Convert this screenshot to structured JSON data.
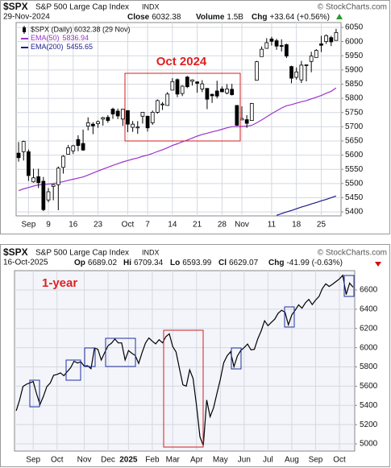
{
  "chart_data": [
    {
      "type": "candlestick",
      "symbol": "$SPX",
      "title": "S&P 500 Large Cap Index",
      "exchange": "INDX",
      "credit": "© StockCharts.com",
      "date": "29-Nov-2024",
      "quote": [
        {
          "label": "Close",
          "value": "6032.38"
        },
        {
          "label": "Volume",
          "value": "1.5B"
        },
        {
          "label": "Chg",
          "value": "+33.64 (+0.56%)"
        }
      ],
      "annotation": "Oct 2024",
      "categories": [
        null,
        null,
        "Sep",
        null,
        null,
        null,
        "9",
        null,
        null,
        null,
        null,
        "16",
        null,
        null,
        null,
        null,
        "23",
        null,
        null,
        null,
        null,
        null,
        "Oct",
        null,
        null,
        null,
        "7",
        null,
        null,
        null,
        null,
        "14",
        null,
        null,
        null,
        null,
        "21",
        null,
        null,
        null,
        null,
        "28",
        null,
        null,
        null,
        "Nov",
        null,
        null,
        null,
        null,
        null,
        "11",
        null,
        null,
        null,
        null,
        "18",
        null,
        null,
        null,
        null,
        "25",
        null,
        null,
        null
      ],
      "price": {
        "name": "$SPX (Daily) 6032.38 (29 Nov)",
        "open": [
          5607,
          5612,
          5612,
          5506,
          5524,
          5508,
          5442,
          5490,
          5496,
          5557,
          5603,
          5615,
          5655,
          5641,
          5702,
          5709,
          5711,
          5727,
          5733,
          5762,
          5755,
          5727,
          5757,
          5698,
          5696,
          5737,
          5737,
          5714,
          5751,
          5779,
          5775,
          5829,
          5866,
          5817,
          5875,
          5860,
          5858,
          5833,
          5835,
          5814,
          5826,
          5833,
          5819,
          5832,
          5775,
          5724,
          5725,
          5722,
          5864,
          5947,
          5976,
          6009,
          6003,
          5986,
          5989,
          5912,
          5874,
          5865,
          5917,
          5930,
          5944,
          5992,
          6000,
          6014,
          6004
        ],
        "high": [
          5646,
          5651,
          5620,
          5552,
          5552,
          5523,
          5484,
          5498,
          5560,
          5600,
          5636,
          5636,
          5670,
          5690,
          5733,
          5716,
          5722,
          5735,
          5741,
          5767,
          5764,
          5763,
          5757,
          5720,
          5720,
          5752,
          5739,
          5757,
          5796,
          5787,
          5822,
          5871,
          5870,
          5846,
          5879,
          5867,
          5860,
          5864,
          5836,
          5817,
          5862,
          5842,
          5850,
          5851,
          5775,
          5772,
          5741,
          5784,
          5932,
          5983,
          6012,
          6017,
          6010,
          6008,
          5993,
          5915,
          5909,
          5932,
          5920,
          5964,
          5973,
          6020,
          6025,
          6020,
          6045
        ],
        "low": [
          5577,
          5581,
          5509,
          5503,
          5484,
          5403,
          5434,
          5441,
          5406,
          5535,
          5603,
          5604,
          5614,
          5615,
          5687,
          5674,
          5696,
          5704,
          5714,
          5728,
          5727,
          5703,
          5681,
          5682,
          5675,
          5711,
          5683,
          5707,
          5746,
          5759,
          5775,
          5829,
          5804,
          5808,
          5836,
          5845,
          5820,
          5822,
          5762,
          5784,
          5800,
          5823,
          5814,
          5810,
          5703,
          5724,
          5696,
          5722,
          5864,
          5947,
          5976,
          5986,
          5971,
          5965,
          5942,
          5853,
          5866,
          5854,
          5860,
          5892,
          5944,
          5963,
          5992,
          5984,
          6004
        ],
        "close": [
          5591,
          5648,
          5528,
          5520,
          5503,
          5408,
          5471,
          5496,
          5554,
          5596,
          5626,
          5633,
          5634,
          5618,
          5714,
          5703,
          5718,
          5732,
          5722,
          5745,
          5738,
          5762,
          5709,
          5709,
          5699,
          5751,
          5696,
          5751,
          5792,
          5780,
          5815,
          5859,
          5815,
          5843,
          5841,
          5865,
          5853,
          5851,
          5797,
          5809,
          5808,
          5823,
          5833,
          5813,
          5705,
          5729,
          5712,
          5782,
          5929,
          5973,
          5996,
          6001,
          5984,
          5985,
          5949,
          5871,
          5893,
          5917,
          5918,
          5949,
          5969,
          5987,
          6021,
          5999,
          6032
        ]
      },
      "series": [
        {
          "name": "EMA(50)",
          "legend_value": "5836.94",
          "color": "#9b33cc",
          "values": [
            5475,
            5481,
            5486,
            5491,
            5495,
            5496,
            5498,
            5500,
            5503,
            5507,
            5511,
            5515,
            5519,
            5523,
            5530,
            5537,
            5544,
            5551,
            5557,
            5564,
            5570,
            5576,
            5581,
            5586,
            5590,
            5596,
            5600,
            5606,
            5613,
            5619,
            5626,
            5634,
            5640,
            5647,
            5653,
            5660,
            5667,
            5673,
            5677,
            5682,
            5686,
            5691,
            5696,
            5700,
            5700,
            5701,
            5702,
            5705,
            5714,
            5724,
            5735,
            5746,
            5756,
            5766,
            5774,
            5778,
            5783,
            5788,
            5792,
            5798,
            5804,
            5810,
            5818,
            5825,
            5837
          ]
        },
        {
          "name": "EMA(200)",
          "legend_value": "5455.65",
          "color": "#1c1c8c",
          "values": [
            null,
            null,
            null,
            null,
            null,
            null,
            null,
            null,
            null,
            null,
            null,
            null,
            null,
            null,
            null,
            null,
            null,
            null,
            null,
            null,
            null,
            null,
            null,
            null,
            null,
            null,
            null,
            null,
            null,
            null,
            null,
            null,
            null,
            null,
            null,
            null,
            null,
            null,
            null,
            null,
            null,
            null,
            null,
            null,
            null,
            null,
            null,
            null,
            null,
            null,
            null,
            null,
            5388,
            5394,
            5400,
            5405,
            5411,
            5417,
            5422,
            5428,
            5433,
            5439,
            5444,
            5450,
            5456
          ]
        }
      ],
      "ylim": [
        5386,
        6067
      ],
      "yticks": [
        5400,
        5450,
        5500,
        5550,
        5600,
        5650,
        5700,
        5750,
        5800,
        5850,
        5900,
        5950,
        6000,
        6050
      ],
      "grid": true
    },
    {
      "type": "line",
      "symbol": "$SPX",
      "title": "S&P 500 Large Cap Index",
      "exchange": "INDX",
      "credit": "© StockCharts.com",
      "date": "16-Oct-2025",
      "quote": [
        {
          "label": "Op",
          "value": "6689.02"
        },
        {
          "label": "Hi",
          "value": "6709.34"
        },
        {
          "label": "Lo",
          "value": "6593.99"
        },
        {
          "label": "Cl",
          "value": "6629.07"
        },
        {
          "label": "Chg",
          "value": "-41.99 (-0.63%)"
        }
      ],
      "annotation": "1-year",
      "categories": [
        null,
        null,
        null,
        null,
        null,
        "Sep",
        null,
        null,
        null,
        null,
        null,
        null,
        "Oct",
        null,
        null,
        null,
        null,
        null,
        null,
        null,
        "Nov",
        null,
        null,
        null,
        null,
        null,
        null,
        "Dec",
        null,
        null,
        null,
        null,
        null,
        "2025",
        null,
        null,
        null,
        null,
        null,
        null,
        "Feb",
        null,
        null,
        null,
        null,
        null,
        "Mar",
        null,
        null,
        null,
        null,
        null,
        null,
        "Apr",
        null,
        null,
        null,
        null,
        null,
        null,
        "May",
        null,
        null,
        null,
        null,
        null,
        null,
        "Jun",
        null,
        null,
        null,
        null,
        null,
        null,
        "Jul",
        null,
        null,
        null,
        null,
        null,
        null,
        "Aug",
        null,
        null,
        null,
        null,
        null,
        null,
        "Sep",
        null,
        null,
        null,
        null,
        null,
        null,
        "Oct",
        null,
        null,
        null,
        null
      ],
      "series": [
        {
          "color": "#000000",
          "values": [
            5344,
            5455,
            5597,
            5620,
            5634,
            5648,
            5520,
            5410,
            5495,
            5596,
            5633,
            5713,
            5722,
            5738,
            5709,
            5751,
            5792,
            5859,
            5841,
            5853,
            5808,
            5813,
            5782,
            5996,
            5984,
            5871,
            5949,
            6021,
            6047,
            6090,
            6051,
            6050,
            5872,
            5970,
            5942,
            5918,
            5836,
            5950,
            6049,
            6101,
            6067,
            6040,
            6083,
            6051,
            6115,
            6144,
            6013,
            5955,
            5778,
            5614,
            5600,
            5770,
            5680,
            5396,
            5074,
            4982,
            5457,
            5282,
            5375,
            5525,
            5670,
            5844,
            5917,
            5958,
            5802,
            5912,
            5970,
            6000,
            6038,
            5977,
            5983,
            6092,
            6173,
            6280,
            6229,
            6263,
            6297,
            6358,
            6389,
            6370,
            6238,
            6340,
            6389,
            6445,
            6411,
            6466,
            6502,
            6448,
            6495,
            6532,
            6615,
            6664,
            6637,
            6661,
            6688,
            6715,
            6753,
            6552,
            6671,
            6629
          ]
        }
      ],
      "ylim": [
        4925,
        6801
      ],
      "yticks": [
        5000,
        5200,
        5400,
        5600,
        5800,
        6000,
        6200,
        6400,
        6600
      ],
      "grid": true
    }
  ]
}
